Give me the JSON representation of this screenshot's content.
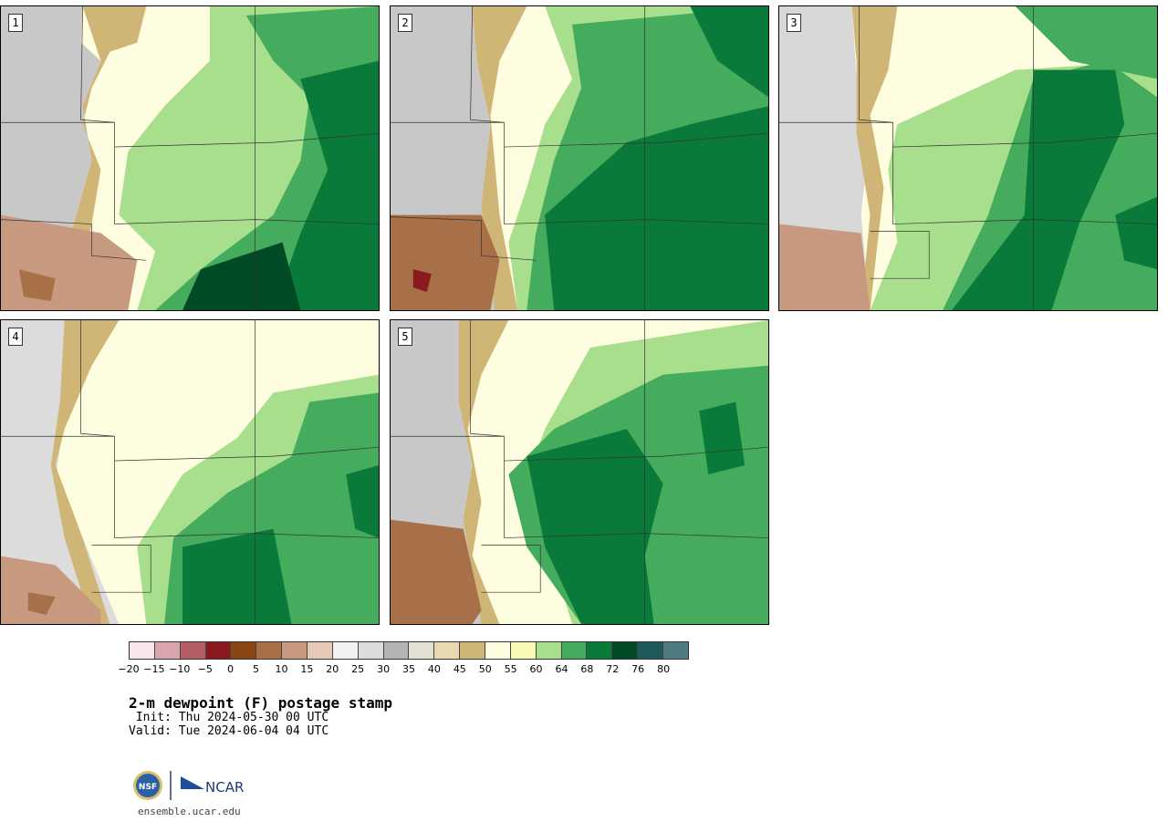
{
  "panels": [
    {
      "label": "1"
    },
    {
      "label": "2"
    },
    {
      "label": "3"
    },
    {
      "label": "4"
    },
    {
      "label": "5"
    }
  ],
  "colorbar": {
    "colors": [
      "#f6e6ea",
      "#d9a5ad",
      "#b65e66",
      "#8b1a1f",
      "#8b4513",
      "#a87048",
      "#c79a80",
      "#e6c9b8",
      "#f2f2f2",
      "#dcdcdc",
      "#b4b4b4",
      "#e2e0d2",
      "#e8d9b0",
      "#d0b676",
      "#fffde0",
      "#f7f9b4",
      "#a8df8c",
      "#44ac5c",
      "#0a7a3a",
      "#004a25",
      "#1f5a5a",
      "#4f7c80"
    ],
    "ticks": [
      "−20",
      "−15",
      "−10",
      "−5",
      "0",
      "5",
      "10",
      "15",
      "20",
      "25",
      "30",
      "35",
      "40",
      "45",
      "50",
      "55",
      "60",
      "64",
      "68",
      "72",
      "76",
      "80"
    ]
  },
  "title": "2-m dewpoint (F) postage stamp",
  "init": " Init: Thu 2024-05-30 00 UTC",
  "valid": "Valid: Tue 2024-06-04 04 UTC",
  "logos": {
    "nsf": "NSF",
    "ncar": "NCAR"
  },
  "site": "ensemble.ucar.edu"
}
